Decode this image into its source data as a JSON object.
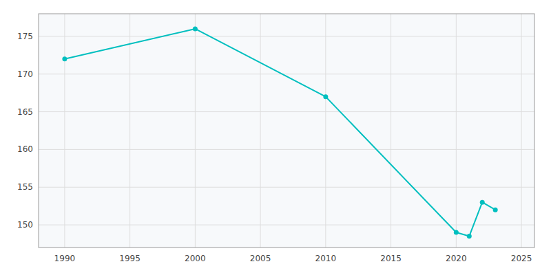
{
  "chart_data": {
    "type": "line",
    "x": [
      1990,
      2000,
      2010,
      2020,
      2021,
      2022,
      2023
    ],
    "values": [
      172,
      176,
      167,
      149,
      148.5,
      153,
      152
    ],
    "color": "#00BFBF",
    "marker": "circle",
    "xlim": [
      1988,
      2026
    ],
    "ylim": [
      147,
      178
    ],
    "xticks": [
      1990,
      1995,
      2000,
      2005,
      2010,
      2015,
      2020,
      2025
    ],
    "yticks": [
      150,
      155,
      160,
      165,
      170,
      175
    ],
    "grid": true
  }
}
